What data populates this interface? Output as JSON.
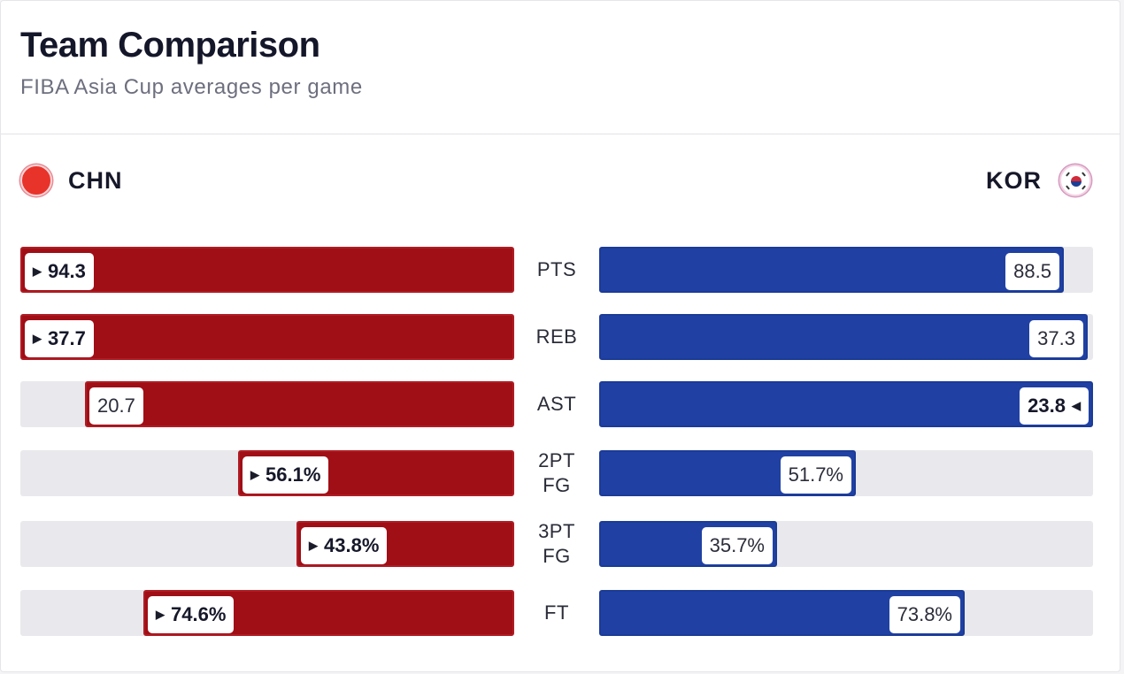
{
  "header": {
    "title": "Team Comparison",
    "subtitle": "FIBA Asia Cup averages per game"
  },
  "teams": {
    "left": {
      "name": "CHN",
      "flag_icon": "china-flag-icon",
      "color": "#a00e16"
    },
    "right": {
      "name": "KOR",
      "flag_icon": "south-korea-flag-icon",
      "color": "#2041a3"
    }
  },
  "chart_data": {
    "type": "bar",
    "orientation": "diverging-horizontal",
    "categories": [
      "PTS",
      "REB",
      "AST",
      "2PT FG",
      "3PT FG",
      "FT"
    ],
    "series": [
      {
        "name": "CHN",
        "values": [
          94.3,
          37.7,
          20.7,
          56.1,
          43.8,
          74.6
        ],
        "labels": [
          "94.3",
          "37.7",
          "20.7",
          "56.1%",
          "43.8%",
          "74.6%"
        ]
      },
      {
        "name": "KOR",
        "values": [
          88.5,
          37.3,
          23.8,
          51.7,
          35.7,
          73.8
        ],
        "labels": [
          "88.5",
          "37.3",
          "23.8",
          "51.7%",
          "35.7%",
          "73.8%"
        ]
      }
    ],
    "leader": [
      "CHN",
      "CHN",
      "KOR",
      "CHN",
      "CHN",
      "CHN"
    ],
    "bar_fill_fraction": {
      "CHN": [
        1.0,
        1.0,
        0.87,
        0.56,
        0.44,
        0.75
      ],
      "KOR": [
        0.94,
        0.99,
        1.0,
        0.52,
        0.36,
        0.74
      ]
    }
  }
}
